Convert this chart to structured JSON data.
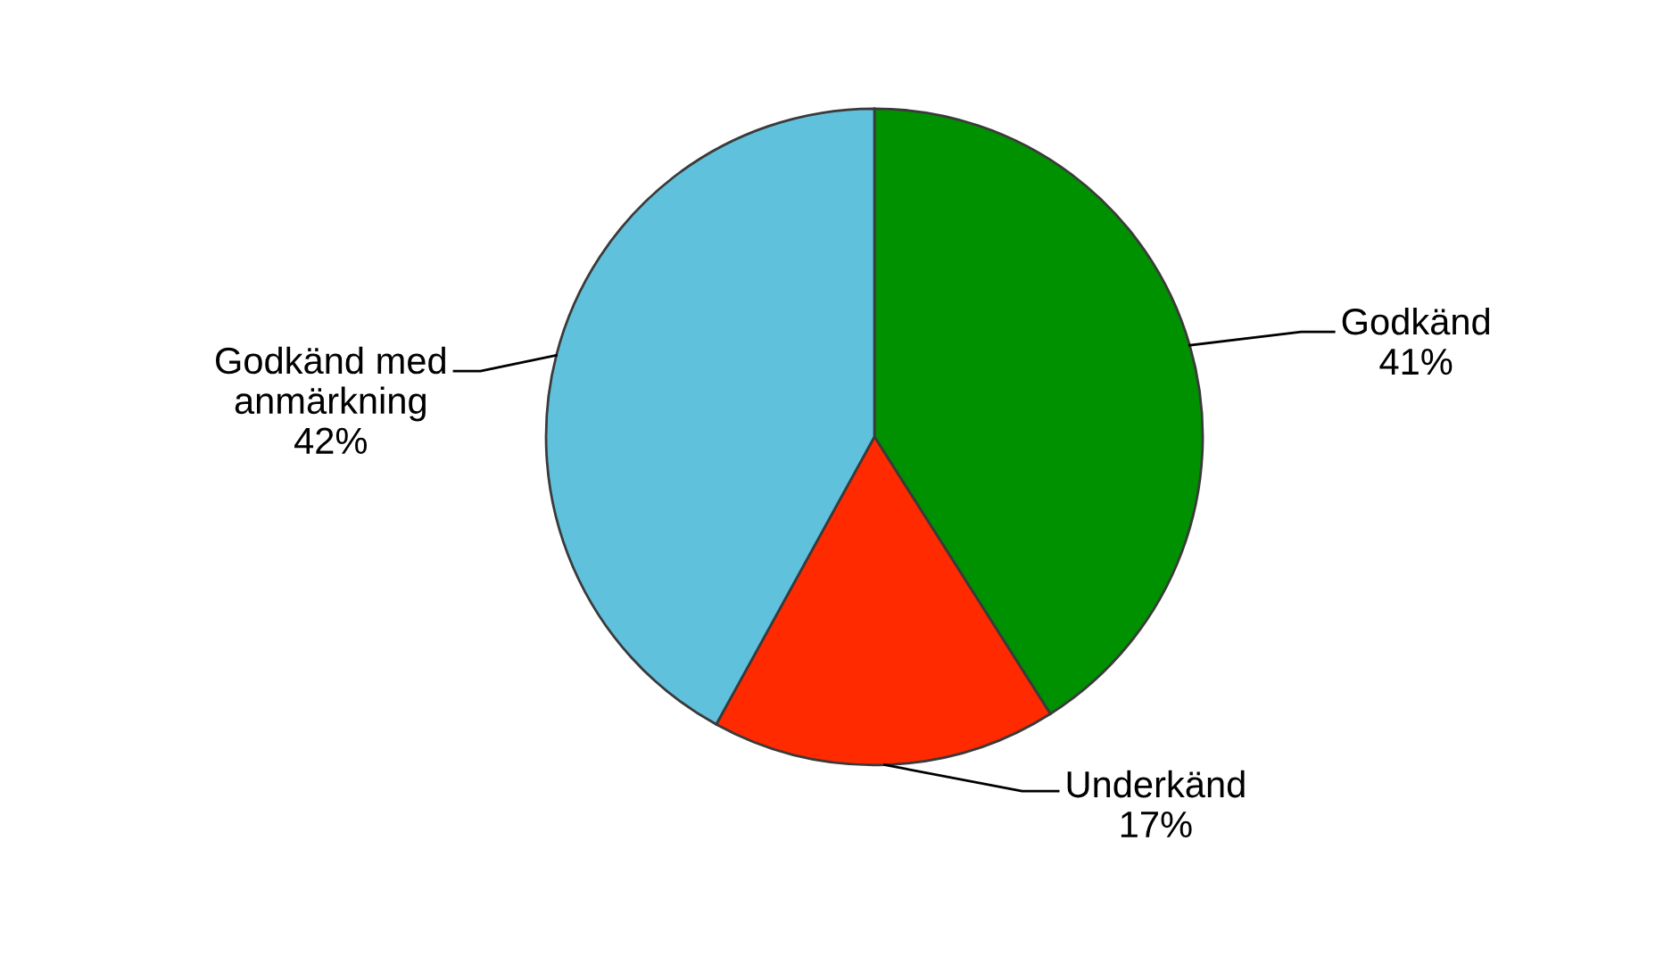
{
  "chart_data": {
    "type": "pie",
    "categories": [
      "Godkänd",
      "Underkänd",
      "Godkänd med anmärkning"
    ],
    "values": [
      41,
      17,
      42
    ],
    "colors": [
      "#009100",
      "#ff2a00",
      "#5fc1dc"
    ],
    "value_labels": [
      "41%",
      "17%",
      "42%"
    ]
  }
}
